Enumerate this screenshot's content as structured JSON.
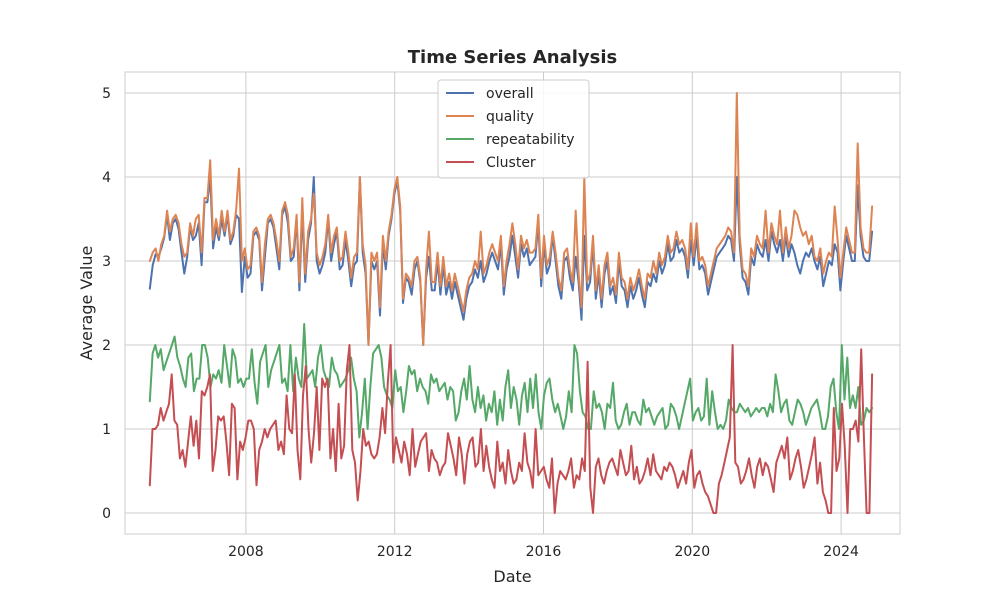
{
  "chart_data": {
    "type": "line",
    "title": "Time Series Analysis",
    "xlabel": "Date",
    "ylabel": "Average Value",
    "x_start": "2005-06",
    "x_end": "2024-11",
    "x_frequency": "monthly",
    "x_ticks": [
      "2008",
      "2012",
      "2016",
      "2020",
      "2024"
    ],
    "y_ticks": [
      "0",
      "1",
      "2",
      "3",
      "4",
      "5"
    ],
    "xlim": [
      "2004-10",
      "2025-08"
    ],
    "ylim": [
      -0.25,
      5.25
    ],
    "grid": true,
    "legend_position": "top-center",
    "series": [
      {
        "name": "overall",
        "color": "#4c72b0",
        "values": [
          2.67,
          2.95,
          3.08,
          3.05,
          3.15,
          3.28,
          3.55,
          3.25,
          3.45,
          3.5,
          3.38,
          3.1,
          2.85,
          3.05,
          3.4,
          3.25,
          3.3,
          3.45,
          2.95,
          3.7,
          3.7,
          4.0,
          3.15,
          3.4,
          3.25,
          3.5,
          3.3,
          3.55,
          3.2,
          3.3,
          3.55,
          3.5,
          2.63,
          3.05,
          2.8,
          2.85,
          3.3,
          3.35,
          3.25,
          2.65,
          3.05,
          3.45,
          3.5,
          3.4,
          3.15,
          2.9,
          3.55,
          3.65,
          3.45,
          3.0,
          3.05,
          3.5,
          2.65,
          3.6,
          2.75,
          3.25,
          3.45,
          4.0,
          3.0,
          2.85,
          2.95,
          3.1,
          3.5,
          3.0,
          3.2,
          3.35,
          2.9,
          2.95,
          3.25,
          3.0,
          2.7,
          2.95,
          3.0,
          4.0,
          3.1,
          2.85,
          2.0,
          3.0,
          2.9,
          3.0,
          2.35,
          3.2,
          2.9,
          3.3,
          3.5,
          3.8,
          3.95,
          3.6,
          2.5,
          2.8,
          2.75,
          2.6,
          2.9,
          3.0,
          2.75,
          2.0,
          2.8,
          3.05,
          2.65,
          2.65,
          3.0,
          2.6,
          2.95,
          2.6,
          2.75,
          2.55,
          2.75,
          2.6,
          2.45,
          2.3,
          2.55,
          2.7,
          2.75,
          2.9,
          2.8,
          3.0,
          2.75,
          2.85,
          3.0,
          3.1,
          3.0,
          2.9,
          3.2,
          2.6,
          2.9,
          3.05,
          3.3,
          3.05,
          2.8,
          3.2,
          3.05,
          3.15,
          2.95,
          3.0,
          3.05,
          3.45,
          2.7,
          3.2,
          2.85,
          2.95,
          3.3,
          3.0,
          2.7,
          2.55,
          3.0,
          3.05,
          2.8,
          2.65,
          3.05,
          2.75,
          2.3,
          3.3,
          2.65,
          2.75,
          3.2,
          2.55,
          2.85,
          2.45,
          2.85,
          3.0,
          2.6,
          2.7,
          2.5,
          3.0,
          2.7,
          2.65,
          2.45,
          2.7,
          2.55,
          2.65,
          2.8,
          2.6,
          2.45,
          2.75,
          2.7,
          2.85,
          2.75,
          3.0,
          2.85,
          2.95,
          3.2,
          3.0,
          3.05,
          3.25,
          3.1,
          3.15,
          3.05,
          2.8,
          3.25,
          2.95,
          3.3,
          2.9,
          2.95,
          2.85,
          2.6,
          2.75,
          2.9,
          3.05,
          3.1,
          3.15,
          3.2,
          3.3,
          3.25,
          3.0,
          4.0,
          3.2,
          2.8,
          2.75,
          2.6,
          3.05,
          2.95,
          3.2,
          3.1,
          3.05,
          3.25,
          3.0,
          3.35,
          3.2,
          3.1,
          3.25,
          3.0,
          3.3,
          3.05,
          3.2,
          3.1,
          2.95,
          2.85,
          3.0,
          3.1,
          3.05,
          3.15,
          3.0,
          2.9,
          3.05,
          2.7,
          2.85,
          3.0,
          2.95,
          3.2,
          3.1,
          2.65,
          3.0,
          3.3,
          3.15,
          3.0,
          3.0,
          3.9,
          3.3,
          3.05,
          3.0,
          3.0,
          3.35
        ]
      },
      {
        "name": "quality",
        "color": "#dd8452",
        "values": [
          3.0,
          3.1,
          3.15,
          3.0,
          3.2,
          3.3,
          3.6,
          3.35,
          3.5,
          3.55,
          3.45,
          3.2,
          3.05,
          3.1,
          3.45,
          3.3,
          3.5,
          3.55,
          3.1,
          3.75,
          3.75,
          4.2,
          3.25,
          3.5,
          3.3,
          3.6,
          3.35,
          3.6,
          3.25,
          3.35,
          3.6,
          4.1,
          3.0,
          3.15,
          2.9,
          2.95,
          3.35,
          3.4,
          3.3,
          2.75,
          3.2,
          3.5,
          3.55,
          3.45,
          3.25,
          3.0,
          3.6,
          3.7,
          3.55,
          3.05,
          3.15,
          3.55,
          2.75,
          3.75,
          2.85,
          3.35,
          3.5,
          3.8,
          3.1,
          2.95,
          3.05,
          3.2,
          3.55,
          3.1,
          3.3,
          3.4,
          3.0,
          3.05,
          3.35,
          3.1,
          2.8,
          3.05,
          3.1,
          4.0,
          3.2,
          2.95,
          2.0,
          3.1,
          3.0,
          3.1,
          2.45,
          3.3,
          3.0,
          3.35,
          3.55,
          3.85,
          4.0,
          3.65,
          2.55,
          2.85,
          2.8,
          2.7,
          3.0,
          3.05,
          2.8,
          2.0,
          2.9,
          3.35,
          2.75,
          2.75,
          3.1,
          2.7,
          3.05,
          2.7,
          2.85,
          2.65,
          2.85,
          2.7,
          2.55,
          2.4,
          2.65,
          2.8,
          2.85,
          3.0,
          2.9,
          3.35,
          2.85,
          2.95,
          3.1,
          3.2,
          3.1,
          3.0,
          3.3,
          2.7,
          3.0,
          3.2,
          3.45,
          3.2,
          2.9,
          3.3,
          3.15,
          3.25,
          3.1,
          3.1,
          3.15,
          3.55,
          2.8,
          3.3,
          2.95,
          3.05,
          3.35,
          3.1,
          2.8,
          2.65,
          3.1,
          3.15,
          2.9,
          2.75,
          3.6,
          2.85,
          2.45,
          4.0,
          2.75,
          2.85,
          3.3,
          2.65,
          2.95,
          2.55,
          2.95,
          3.1,
          2.7,
          2.8,
          2.6,
          3.1,
          2.8,
          2.75,
          2.55,
          2.8,
          2.65,
          2.75,
          2.9,
          2.7,
          2.55,
          2.85,
          2.8,
          3.0,
          2.85,
          3.1,
          2.95,
          3.05,
          3.3,
          3.1,
          3.15,
          3.35,
          3.2,
          3.25,
          3.15,
          2.9,
          3.45,
          3.05,
          3.45,
          3.0,
          3.05,
          2.95,
          2.7,
          2.85,
          3.0,
          3.15,
          3.2,
          3.25,
          3.3,
          3.4,
          3.35,
          3.1,
          5.0,
          3.3,
          2.9,
          2.85,
          2.7,
          3.15,
          3.05,
          3.3,
          3.2,
          3.15,
          3.6,
          3.1,
          3.45,
          3.3,
          3.2,
          3.6,
          3.1,
          3.4,
          3.15,
          3.3,
          3.6,
          3.55,
          3.4,
          3.3,
          3.35,
          3.2,
          3.3,
          3.05,
          3.0,
          3.15,
          2.85,
          3.0,
          3.1,
          3.05,
          3.65,
          3.25,
          2.8,
          3.1,
          3.4,
          3.25,
          3.1,
          3.1,
          4.4,
          3.4,
          3.15,
          3.1,
          3.1,
          3.65
        ]
      },
      {
        "name": "repeatability",
        "color": "#55a868",
        "values": [
          1.33,
          1.9,
          2.0,
          1.85,
          1.95,
          1.7,
          1.8,
          1.9,
          2.0,
          2.1,
          1.85,
          1.75,
          1.6,
          1.5,
          1.85,
          1.9,
          1.45,
          1.6,
          1.6,
          2.0,
          2.0,
          1.85,
          1.5,
          1.65,
          1.6,
          1.7,
          1.55,
          2.0,
          1.75,
          1.5,
          1.95,
          1.85,
          1.55,
          1.6,
          1.5,
          1.6,
          1.6,
          1.95,
          1.55,
          1.3,
          1.8,
          1.9,
          2.0,
          1.5,
          1.7,
          1.8,
          1.9,
          2.0,
          1.55,
          1.6,
          1.45,
          2.0,
          1.45,
          1.85,
          1.6,
          1.5,
          2.25,
          1.6,
          1.65,
          1.7,
          1.5,
          1.85,
          2.0,
          1.7,
          1.6,
          1.5,
          1.85,
          1.7,
          1.65,
          1.5,
          1.55,
          1.6,
          1.7,
          1.85,
          1.6,
          1.45,
          0.9,
          1.2,
          1.6,
          1.0,
          1.5,
          1.9,
          1.95,
          2.0,
          1.85,
          1.5,
          1.4,
          1.35,
          1.25,
          1.7,
          1.45,
          1.5,
          1.2,
          1.45,
          1.75,
          1.65,
          1.7,
          1.45,
          1.6,
          1.5,
          1.45,
          1.3,
          1.65,
          1.55,
          1.6,
          1.45,
          1.5,
          1.55,
          1.35,
          1.5,
          1.45,
          1.1,
          1.2,
          1.45,
          1.6,
          1.35,
          1.75,
          1.35,
          1.2,
          1.5,
          1.25,
          1.4,
          1.1,
          1.3,
          1.2,
          1.45,
          1.05,
          1.35,
          1.1,
          1.5,
          1.7,
          1.25,
          1.5,
          1.35,
          1.05,
          1.4,
          1.55,
          1.2,
          1.6,
          1.25,
          1.65,
          1.2,
          1.0,
          1.4,
          1.55,
          1.6,
          1.35,
          1.2,
          1.3,
          1.15,
          1.0,
          1.15,
          1.45,
          1.2,
          2.0,
          1.9,
          1.45,
          1.2,
          1.15,
          1.0,
          1.0,
          1.45,
          1.25,
          1.3,
          1.2,
          1.0,
          1.3,
          1.25,
          1.55,
          1.1,
          1.0,
          1.05,
          1.2,
          1.3,
          1.05,
          1.2,
          1.2,
          1.1,
          1.05,
          1.35,
          1.2,
          1.25,
          1.15,
          1.05,
          1.15,
          1.2,
          1.25,
          1.0,
          1.05,
          1.3,
          1.25,
          1.15,
          1.0,
          1.15,
          1.3,
          1.45,
          1.6,
          1.1,
          1.2,
          1.25,
          1.1,
          1.15,
          1.6,
          1.05,
          1.45,
          1.2,
          1.0,
          1.05,
          1.0,
          1.1,
          1.35,
          1.25,
          1.2,
          1.2,
          1.3,
          1.25,
          1.2,
          1.25,
          1.15,
          1.2,
          1.25,
          1.2,
          1.25,
          1.25,
          1.15,
          1.3,
          1.2,
          1.65,
          1.45,
          1.2,
          1.3,
          1.35,
          1.1,
          1.05,
          1.2,
          1.35,
          1.3,
          1.2,
          1.05,
          1.15,
          1.25,
          1.3,
          1.35,
          1.2,
          1.0,
          1.0,
          1.15,
          1.5,
          1.6,
          1.2,
          1.0,
          2.0,
          1.35,
          1.85,
          1.25,
          1.4,
          1.25,
          1.5,
          1.05,
          1.1,
          1.25,
          1.2,
          1.25
        ]
      },
      {
        "name": "Cluster",
        "color": "#c44e52",
        "values": [
          0.33,
          1.0,
          1.0,
          1.05,
          1.25,
          1.1,
          1.2,
          1.3,
          1.65,
          1.1,
          1.05,
          0.65,
          0.75,
          0.55,
          0.85,
          1.15,
          0.8,
          1.1,
          0.65,
          1.45,
          1.4,
          1.5,
          1.65,
          0.5,
          0.75,
          1.15,
          1.1,
          1.15,
          0.85,
          0.45,
          1.3,
          1.25,
          0.4,
          0.85,
          0.75,
          0.9,
          1.1,
          1.1,
          1.0,
          0.33,
          0.75,
          0.85,
          1.0,
          0.9,
          1.0,
          1.05,
          1.1,
          0.75,
          0.85,
          0.7,
          1.4,
          1.0,
          0.95,
          1.65,
          0.75,
          0.4,
          1.4,
          1.75,
          1.0,
          0.6,
          0.95,
          1.5,
          0.75,
          1.6,
          1.5,
          1.6,
          0.65,
          1.0,
          0.5,
          1.3,
          0.65,
          0.8,
          1.7,
          2.0,
          0.75,
          0.6,
          0.15,
          0.5,
          1.0,
          0.8,
          0.85,
          0.7,
          0.65,
          0.7,
          0.9,
          1.25,
          0.95,
          1.55,
          2.0,
          0.6,
          0.9,
          0.75,
          0.6,
          0.85,
          0.7,
          0.45,
          1.0,
          0.55,
          0.7,
          0.85,
          0.9,
          0.95,
          0.5,
          0.75,
          0.65,
          0.6,
          0.45,
          0.55,
          0.6,
          0.95,
          0.8,
          0.65,
          0.45,
          0.9,
          0.7,
          0.35,
          0.7,
          0.85,
          0.9,
          0.55,
          0.6,
          1.0,
          0.5,
          0.8,
          0.55,
          0.4,
          0.3,
          0.85,
          0.5,
          0.6,
          0.35,
          0.75,
          0.5,
          0.35,
          0.4,
          0.6,
          0.5,
          0.95,
          0.6,
          0.5,
          0.3,
          1.0,
          0.45,
          0.5,
          0.55,
          0.4,
          0.3,
          0.65,
          0.0,
          0.35,
          0.5,
          0.45,
          0.4,
          0.5,
          0.65,
          0.3,
          0.45,
          0.4,
          0.65,
          0.5,
          1.8,
          0.3,
          0.0,
          0.55,
          0.65,
          0.45,
          0.35,
          0.5,
          0.6,
          0.65,
          0.55,
          0.45,
          0.75,
          0.6,
          0.45,
          0.5,
          0.8,
          0.4,
          0.55,
          0.35,
          0.4,
          0.5,
          0.65,
          0.45,
          0.7,
          0.5,
          0.45,
          0.4,
          0.55,
          0.5,
          0.6,
          0.55,
          0.45,
          0.3,
          0.4,
          0.5,
          0.35,
          0.6,
          0.75,
          0.3,
          0.45,
          0.5,
          0.35,
          0.25,
          0.2,
          0.1,
          0.0,
          0.0,
          0.35,
          0.45,
          0.6,
          0.75,
          0.9,
          2.0,
          0.6,
          0.55,
          0.35,
          0.4,
          0.5,
          0.65,
          0.45,
          0.3,
          0.55,
          0.65,
          0.45,
          0.6,
          0.55,
          0.4,
          0.25,
          0.6,
          0.7,
          0.8,
          0.65,
          0.9,
          0.4,
          0.5,
          0.65,
          0.75,
          0.55,
          0.3,
          0.4,
          0.55,
          0.7,
          0.9,
          0.35,
          0.6,
          0.25,
          0.15,
          0.0,
          0.0,
          1.25,
          0.5,
          0.65,
          1.3,
          0.8,
          0.0,
          1.0,
          1.0,
          1.1,
          0.85,
          1.95,
          0.9,
          0.0,
          0.0,
          1.65
        ]
      }
    ]
  }
}
